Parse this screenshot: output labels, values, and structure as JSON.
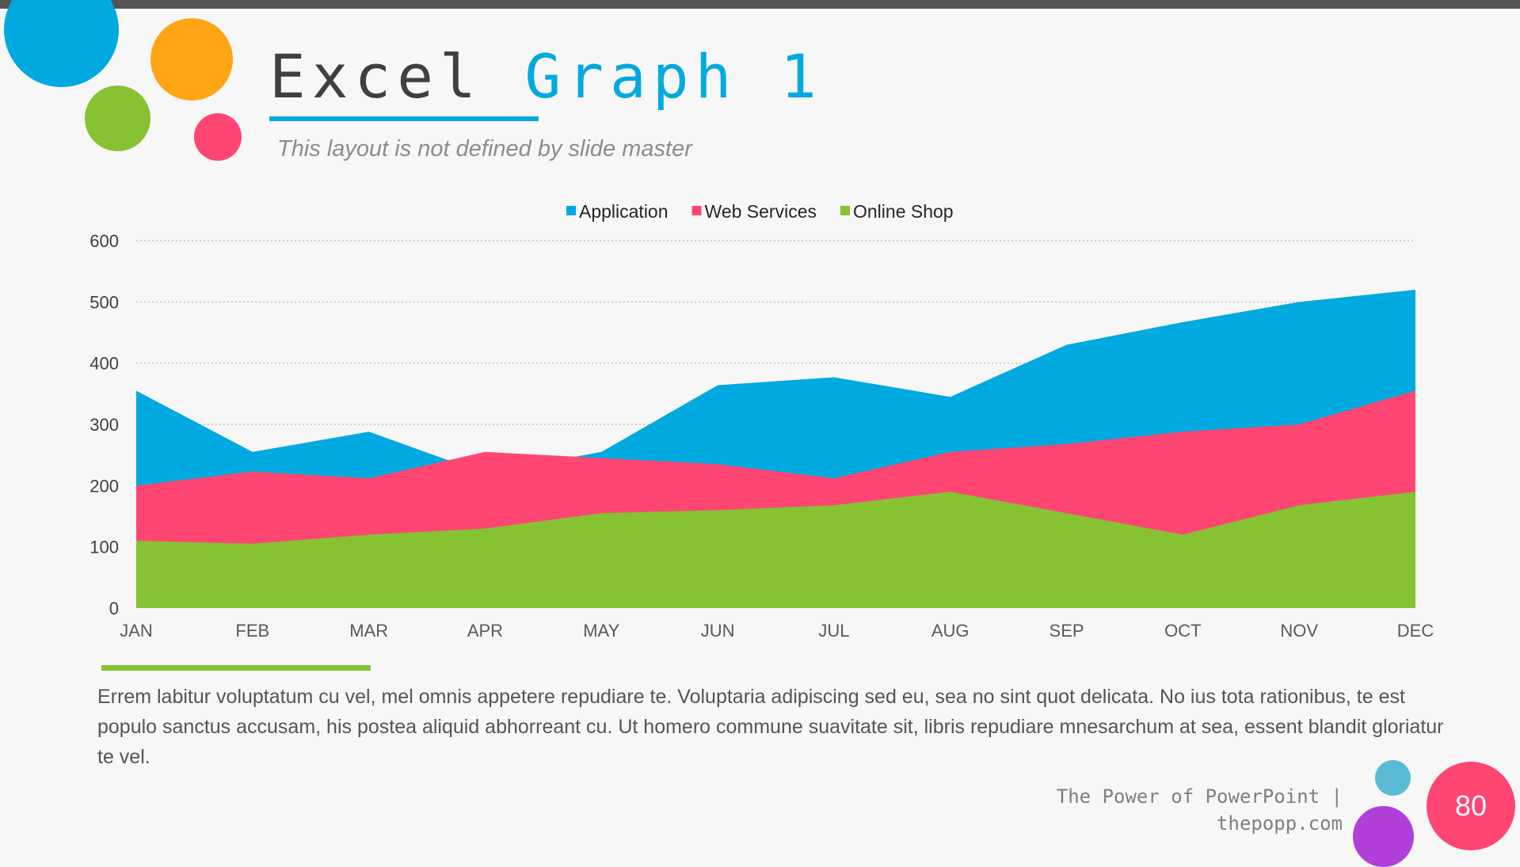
{
  "slide": {
    "title_part1": "Excel",
    "title_part2": "Graph 1",
    "subtitle": "This layout is not defined by slide master",
    "body_text": "Errem labitur voluptatum cu vel, mel omnis appetere repudiare te. Voluptaria adipiscing sed eu, sea no sint quot delicata. No ius tota rationibus, te est populo sanctus accusam, his postea aliquid abhorreant cu. Ut homero commune suavitate sit, libris repudiare mnesarchum at sea, essent blandit gloriatur te vel.",
    "footer_line1": "The Power of PowerPoint |",
    "footer_line2": "thepopp.com",
    "page_number": "80"
  },
  "colors": {
    "application": "#00a9e0",
    "web_services": "#ff4673",
    "online_shop": "#86c232",
    "orange": "#ffa516",
    "teal": "#5bbbd4",
    "purple": "#b040d8"
  },
  "chart_data": {
    "type": "area",
    "stacked": false,
    "categories": [
      "JAN",
      "FEB",
      "MAR",
      "APR",
      "MAY",
      "JUN",
      "JUL",
      "AUG",
      "SEP",
      "OCT",
      "NOV",
      "DEC"
    ],
    "series": [
      {
        "name": "Application",
        "color": "#00a9e0",
        "values": [
          355,
          255,
          288,
          220,
          255,
          364,
          377,
          345,
          430,
          467,
          500,
          520
        ]
      },
      {
        "name": "Web Services",
        "color": "#ff4673",
        "values": [
          200,
          223,
          212,
          255,
          245,
          235,
          212,
          255,
          268,
          288,
          300,
          355
        ]
      },
      {
        "name": "Online Shop",
        "color": "#86c232",
        "values": [
          110,
          105,
          120,
          130,
          155,
          160,
          168,
          190,
          155,
          120,
          168,
          190
        ]
      }
    ],
    "ylim": [
      0,
      600
    ],
    "yticks": [
      0,
      100,
      200,
      300,
      400,
      500,
      600
    ],
    "grid": true,
    "legend": "top"
  }
}
